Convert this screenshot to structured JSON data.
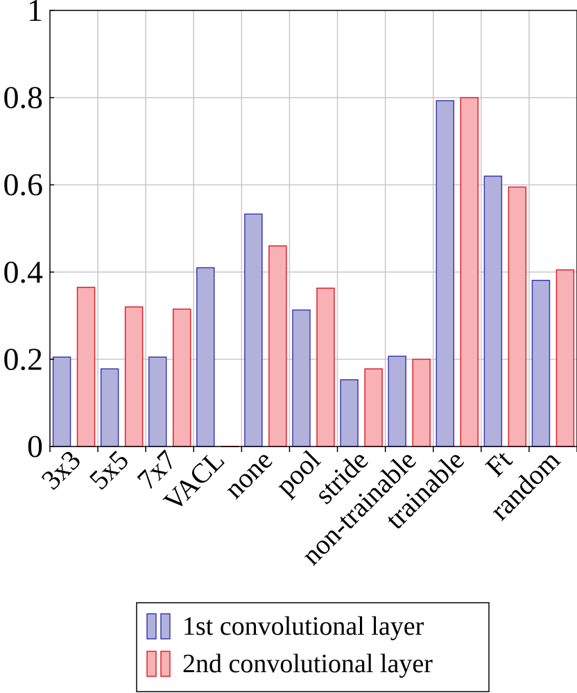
{
  "chart_data": {
    "type": "bar",
    "title": "",
    "xlabel": "",
    "ylabel": "",
    "ylim": [
      0,
      1
    ],
    "yticks": [
      0,
      0.2,
      0.4,
      0.6,
      0.8,
      1
    ],
    "ytick_labels": [
      "0",
      "0.2",
      "0.4",
      "0.6",
      "0.8",
      "1"
    ],
    "grid": true,
    "legend_position": "bottom",
    "categories": [
      "3x3",
      "5x5",
      "7x7",
      "VACL",
      "none",
      "pool",
      "stride",
      "non-trainable",
      "trainable",
      "Ft",
      "random"
    ],
    "series": [
      {
        "name": "1st convolutional layer",
        "fill": "#b1b1dc",
        "stroke": "#3a3ab0",
        "values": [
          0.205,
          0.178,
          0.205,
          0.41,
          0.533,
          0.313,
          0.153,
          0.207,
          0.793,
          0.62,
          0.381
        ]
      },
      {
        "name": "2nd convolutional layer",
        "fill": "#f8b1b5",
        "stroke": "#e0202a",
        "values": [
          0.365,
          0.32,
          0.315,
          0.0,
          0.46,
          0.363,
          0.178,
          0.2,
          0.8,
          0.595,
          0.405
        ]
      }
    ]
  }
}
